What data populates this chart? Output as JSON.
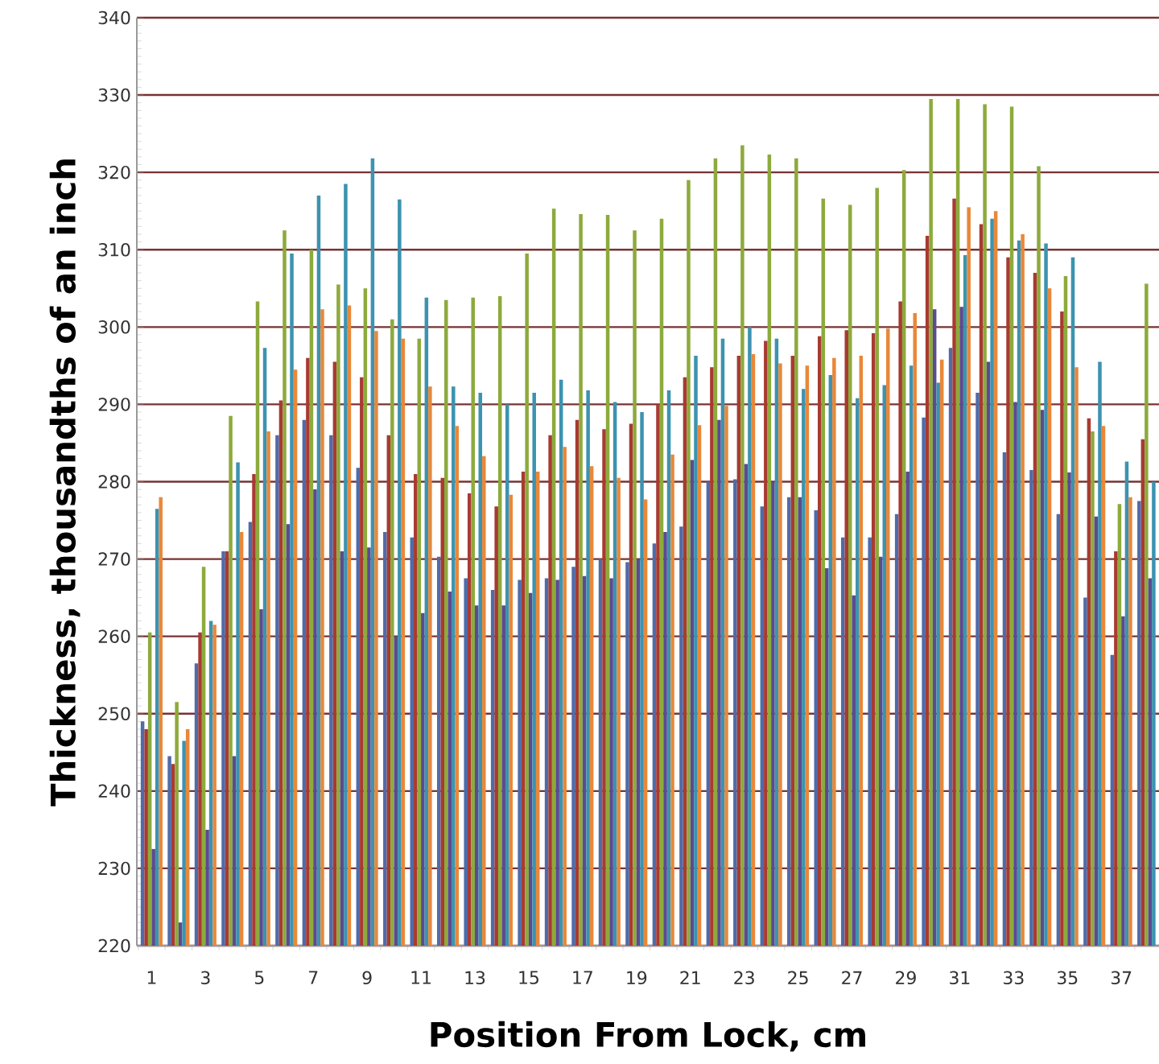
{
  "chart_data": {
    "type": "bar",
    "xlabel": "Position From Lock, cm",
    "ylabel": "Thickness, thousandths of an inch",
    "categories": [
      "1",
      null,
      "3",
      null,
      "5",
      null,
      "7",
      null,
      "9",
      null,
      "11",
      null,
      "13",
      null,
      "15",
      null,
      "17",
      null,
      "19",
      null,
      "21",
      null,
      "23",
      null,
      "25",
      null,
      "27",
      null,
      "29",
      null,
      "31",
      null,
      "33",
      null,
      "35",
      null,
      "37",
      null
    ],
    "ylim": [
      220,
      340
    ],
    "yticks": [
      220,
      230,
      240,
      250,
      260,
      270,
      280,
      290,
      300,
      310,
      320,
      330,
      340
    ],
    "grid": "y",
    "series": [
      {
        "color": "#4f6ba8",
        "values": [
          249,
          244.5,
          256.5,
          271,
          274.8,
          286,
          288,
          286,
          281.8,
          273.5,
          272.8,
          270.3,
          267.5,
          266,
          267.3,
          267.5,
          269,
          270,
          269.6,
          272,
          274.2,
          280,
          280.3,
          276.8,
          278,
          276.3,
          272.8,
          272.8,
          275.8,
          288.3,
          297.3,
          291.5,
          283.8,
          281.5,
          275.8,
          265,
          257.6,
          277.5
        ]
      },
      {
        "color": "#a83a32",
        "values": [
          248,
          243.5,
          260.5,
          271,
          281,
          290.5,
          296,
          295.5,
          293.5,
          286,
          281,
          280.5,
          278.5,
          276.8,
          281.3,
          286,
          288,
          286.8,
          287.5,
          290,
          293.5,
          294.8,
          296.3,
          298.2,
          296.3,
          298.8,
          299.6,
          299.2,
          303.3,
          311.8,
          316.6,
          313.3,
          309,
          307,
          302,
          288.2,
          271,
          285.5
        ]
      },
      {
        "color": "#8daa3c",
        "values": [
          260.5,
          251.5,
          269,
          288.5,
          303.3,
          312.5,
          310,
          305.5,
          305,
          301,
          298.5,
          303.5,
          303.8,
          304,
          309.5,
          315.3,
          314.6,
          314.5,
          312.5,
          314,
          319,
          321.8,
          323.5,
          322.3,
          321.8,
          316.6,
          315.8,
          318,
          320.3,
          329.5,
          329.5,
          328.8,
          328.5,
          320.8,
          306.6,
          286.5,
          277.1,
          305.6
        ]
      },
      {
        "color": "#5b4b8f",
        "values": [
          232.5,
          223,
          235,
          244.5,
          263.5,
          274.5,
          279,
          271,
          271.5,
          260,
          263,
          265.8,
          264,
          264,
          265.6,
          267.3,
          267.8,
          267.5,
          270,
          273.5,
          282.8,
          288,
          282.3,
          280,
          278,
          268.8,
          265.3,
          270.3,
          281.3,
          302.3,
          302.6,
          295.5,
          290.3,
          289.3,
          281.2,
          275.5,
          262.6,
          267.5
        ]
      },
      {
        "color": "#3c93b0",
        "values": [
          276.5,
          246.5,
          262,
          282.5,
          297.3,
          309.5,
          317,
          318.5,
          321.8,
          316.5,
          303.8,
          292.3,
          291.5,
          290,
          291.5,
          293.2,
          291.8,
          290.3,
          289,
          291.8,
          296.3,
          298.5,
          300,
          298.5,
          292,
          293.8,
          290.8,
          292.5,
          295,
          292.8,
          309.3,
          314,
          311.2,
          310.8,
          309,
          295.5,
          282.6,
          280
        ]
      },
      {
        "color": "#e8883a",
        "values": [
          278,
          248,
          261.5,
          273.5,
          286.5,
          294.5,
          302.3,
          302.8,
          299.5,
          298.5,
          292.3,
          287.2,
          283.3,
          278.3,
          281.3,
          284.5,
          282,
          280.5,
          277.7,
          283.5,
          287.3,
          289.8,
          296.5,
          295.3,
          295,
          296,
          296.3,
          299.8,
          301.8,
          295.8,
          315.5,
          315,
          312,
          305,
          294.8,
          287.2,
          278,
          null
        ]
      }
    ]
  }
}
